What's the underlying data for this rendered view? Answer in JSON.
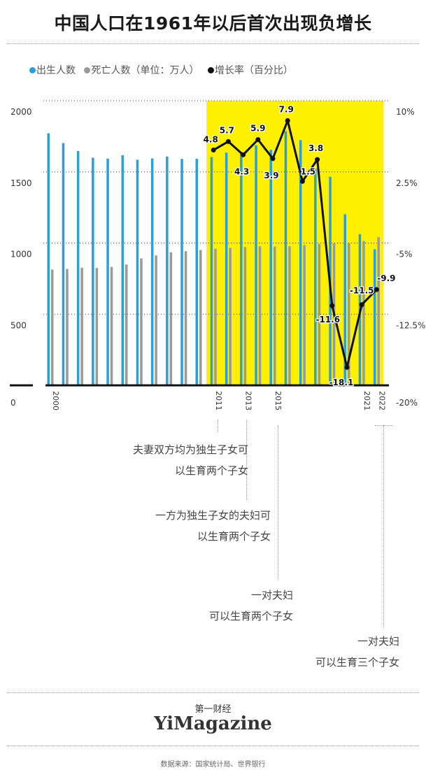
{
  "title": "中国人口在1961年以后首次出现负增长",
  "legend": {
    "births": "出生人数",
    "deaths": "死亡人数（单位：万人）",
    "growth": "增长率（百分比）"
  },
  "annotations": [
    {
      "line1": "夫妻双方均为独生子女可",
      "line2": "以生育两个子女"
    },
    {
      "line1": "一方为独生子女的夫妇可",
      "line2": "以生育两个子女"
    },
    {
      "line1": "一对夫妇",
      "line2": "可以生育两个子女"
    },
    {
      "line1": "一对夫妇",
      "line2": "可以生育三个子女"
    }
  ],
  "brand_cn": "第一财经",
  "brand_en": "YiMagazine",
  "source": "数据来源：国家统计局、世界银行",
  "colors": {
    "births": "#2a9fd8",
    "deaths": "#9a9a9a",
    "growth": "#111111",
    "highlight": "#ffef00"
  },
  "chart_data": {
    "type": "bar",
    "years": [
      2000,
      2001,
      2002,
      2003,
      2004,
      2005,
      2006,
      2007,
      2008,
      2009,
      2010,
      2011,
      2012,
      2013,
      2014,
      2015,
      2016,
      2017,
      2018,
      2019,
      2020,
      2021,
      2022
    ],
    "year_labels": [
      "2000",
      "2011",
      "2013",
      "2015",
      "2021",
      "2022"
    ],
    "series": [
      {
        "name": "出生人数",
        "values": [
          1771,
          1702,
          1647,
          1599,
          1593,
          1617,
          1585,
          1594,
          1608,
          1591,
          1592,
          1604,
          1635,
          1640,
          1687,
          1655,
          1786,
          1723,
          1523,
          1465,
          1202,
          1062,
          956
        ]
      },
      {
        "name": "死亡人数（单位：万人）",
        "values": [
          814,
          818,
          826,
          825,
          832,
          849,
          892,
          913,
          935,
          943,
          951,
          960,
          966,
          972,
          977,
          975,
          977,
          986,
          993,
          998,
          998,
          1014,
          1041
        ]
      }
    ],
    "growth": {
      "name": "增长率（百分比）",
      "start_index": 11,
      "values": [
        4.8,
        5.7,
        4.3,
        5.9,
        3.9,
        7.9,
        1.5,
        3.8,
        -11.6,
        -18.1,
        -11.5,
        -9.9
      ],
      "labels": [
        "4.8",
        "5.7",
        "4.3",
        "5.9",
        "3.9",
        "7.9",
        "1.5",
        "3.8",
        "-11.6",
        "-18.1",
        "-11.5",
        "-9.9"
      ]
    },
    "left_axis": {
      "ticks": [
        0,
        500,
        1000,
        1500,
        2000
      ],
      "labels": [
        "0",
        "500",
        "1000",
        "1500",
        "2000"
      ],
      "range": [
        0,
        2000
      ]
    },
    "right_axis": {
      "ticks": [
        -20,
        -12.5,
        -5,
        2.5,
        10
      ],
      "labels": [
        "-20%",
        "-12.5%",
        "-5%",
        "2.5%",
        "10%"
      ],
      "range": [
        -20,
        10
      ]
    },
    "highlight_years": [
      2011,
      2022
    ],
    "grid": true
  }
}
